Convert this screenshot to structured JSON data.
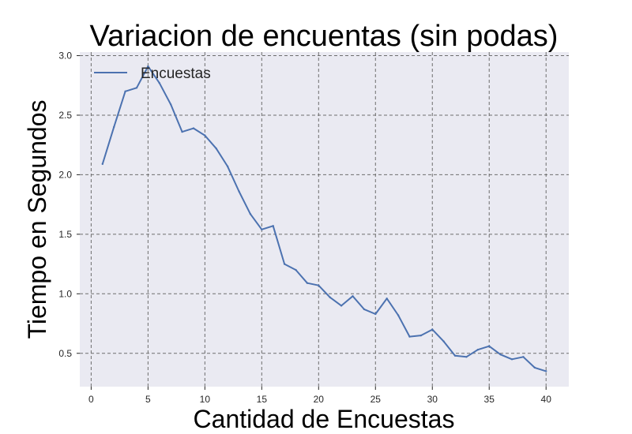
{
  "chart_data": {
    "type": "line",
    "title": "Variacion de encuentas (sin podas)",
    "xlabel": "Cantidad de Encuestas",
    "ylabel": "Tiempo en Segundos",
    "xlim": [
      -1,
      42
    ],
    "ylim": [
      0.22,
      3.03
    ],
    "xticks": [
      0,
      5,
      10,
      15,
      20,
      25,
      30,
      35,
      40
    ],
    "yticks": [
      0.5,
      1.0,
      1.5,
      2.0,
      2.5,
      3.0
    ],
    "xtick_labels": [
      "0",
      "5",
      "10",
      "15",
      "20",
      "25",
      "30",
      "35",
      "40"
    ],
    "ytick_labels": [
      "0.5",
      "1.0",
      "1.5",
      "2.0",
      "2.5",
      "3.0"
    ],
    "grid": true,
    "legend": {
      "position": "top-left"
    },
    "series": [
      {
        "name": "Encuestas",
        "color": "#4c72b0",
        "x": [
          1,
          2,
          3,
          4,
          5,
          6,
          7,
          8,
          9,
          10,
          11,
          12,
          13,
          14,
          15,
          16,
          17,
          18,
          19,
          20,
          21,
          22,
          23,
          24,
          25,
          26,
          27,
          28,
          29,
          30,
          31,
          32,
          33,
          34,
          35,
          36,
          37,
          38,
          39,
          40
        ],
        "values": [
          2.09,
          2.4,
          2.7,
          2.73,
          2.91,
          2.77,
          2.59,
          2.36,
          2.39,
          2.33,
          2.22,
          2.07,
          1.86,
          1.67,
          1.54,
          1.57,
          1.25,
          1.2,
          1.09,
          1.07,
          0.97,
          0.9,
          0.98,
          0.87,
          0.83,
          0.96,
          0.82,
          0.64,
          0.65,
          0.7,
          0.6,
          0.48,
          0.47,
          0.53,
          0.56,
          0.49,
          0.45,
          0.47,
          0.38,
          0.35
        ]
      }
    ]
  }
}
